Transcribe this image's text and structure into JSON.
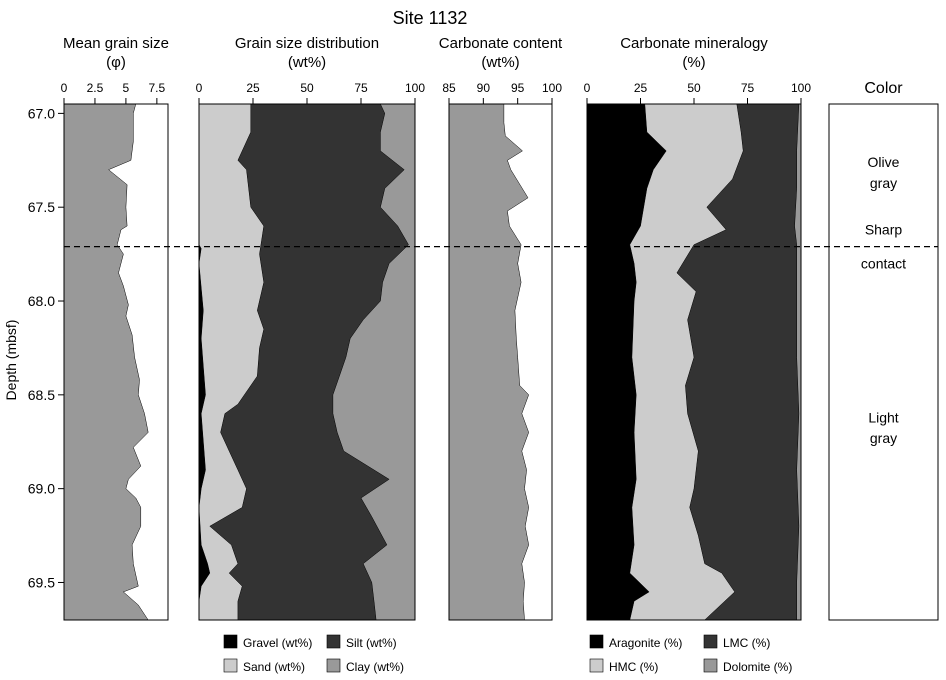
{
  "chart_data": {
    "type": "area",
    "title": "Site 1132",
    "y_axis": {
      "label": "Depth  (mbsf)",
      "range": [
        66.95,
        69.7
      ],
      "ticks": [
        "67.0",
        "67.5",
        "68.0",
        "68.5",
        "69.0",
        "69.5"
      ],
      "tick_values": [
        67.0,
        67.5,
        68.0,
        68.5,
        69.0,
        69.5
      ],
      "inverted": true
    },
    "contact": {
      "depth": 67.71,
      "label_top": "Sharp",
      "label_bottom": "contact"
    },
    "panels": [
      {
        "key": "grain_size",
        "title_line1": "Mean grain size",
        "title_line2": "(φ)",
        "x_range": [
          0,
          8.4
        ],
        "ticks": [
          "0",
          "2.5",
          "5",
          "7.5"
        ],
        "tick_values": [
          0,
          2.5,
          5,
          7.5
        ],
        "series": [
          {
            "name": "Mean grain size",
            "color": "#999999",
            "points": [
              [
                5.8,
                66.95
              ],
              [
                5.6,
                67.0
              ],
              [
                5.6,
                67.15
              ],
              [
                5.4,
                67.25
              ],
              [
                3.6,
                67.3
              ],
              [
                5.1,
                67.38
              ],
              [
                5.0,
                67.5
              ],
              [
                5.1,
                67.6
              ],
              [
                4.6,
                67.62
              ],
              [
                4.3,
                67.7
              ],
              [
                4.8,
                67.75
              ],
              [
                4.4,
                67.85
              ],
              [
                4.8,
                67.92
              ],
              [
                5.2,
                68.02
              ],
              [
                5.0,
                68.08
              ],
              [
                5.5,
                68.18
              ],
              [
                5.7,
                68.3
              ],
              [
                6.1,
                68.42
              ],
              [
                6.0,
                68.5
              ],
              [
                6.5,
                68.6
              ],
              [
                6.8,
                68.7
              ],
              [
                5.6,
                68.78
              ],
              [
                6.2,
                68.88
              ],
              [
                5.2,
                68.95
              ],
              [
                5.0,
                69.0
              ],
              [
                5.8,
                69.05
              ],
              [
                6.2,
                69.1
              ],
              [
                6.2,
                69.2
              ],
              [
                5.5,
                69.3
              ],
              [
                5.6,
                69.4
              ],
              [
                6.0,
                69.52
              ],
              [
                4.8,
                69.55
              ],
              [
                6.0,
                69.62
              ],
              [
                6.8,
                69.7
              ]
            ]
          }
        ]
      },
      {
        "key": "grain_dist",
        "title_line1": "Grain size distribution",
        "title_line2": "(wt%)",
        "x_range": [
          0,
          100
        ],
        "ticks": [
          "0",
          "25",
          "50",
          "75",
          "100"
        ],
        "tick_values": [
          0,
          25,
          50,
          75,
          100
        ],
        "series": [
          {
            "name": "Gravel (wt%)",
            "color": "#000000",
            "points": [
              [
                0,
                66.95
              ],
              [
                0,
                67.7
              ],
              [
                1,
                67.72
              ],
              [
                0,
                67.8
              ],
              [
                2,
                68.05
              ],
              [
                1,
                68.2
              ],
              [
                3,
                68.5
              ],
              [
                1,
                68.6
              ],
              [
                3,
                68.9
              ],
              [
                1,
                69.0
              ],
              [
                0,
                69.1
              ],
              [
                1,
                69.3
              ],
              [
                4,
                69.4
              ],
              [
                5,
                69.45
              ],
              [
                1,
                69.52
              ],
              [
                0,
                69.6
              ],
              [
                0,
                69.7
              ]
            ]
          },
          {
            "name": "Sand (wt%)",
            "color": "#cccccc",
            "points": [
              [
                24,
                66.95
              ],
              [
                24,
                67.1
              ],
              [
                18,
                67.25
              ],
              [
                22,
                67.3
              ],
              [
                24,
                67.5
              ],
              [
                30,
                67.6
              ],
              [
                28,
                67.75
              ],
              [
                30,
                67.9
              ],
              [
                27,
                68.05
              ],
              [
                30,
                68.15
              ],
              [
                28,
                68.25
              ],
              [
                27,
                68.4
              ],
              [
                18,
                68.55
              ],
              [
                12,
                68.6
              ],
              [
                10,
                68.7
              ],
              [
                14,
                68.8
              ],
              [
                18,
                68.9
              ],
              [
                22,
                69.0
              ],
              [
                20,
                69.1
              ],
              [
                5,
                69.2
              ],
              [
                15,
                69.3
              ],
              [
                18,
                69.4
              ],
              [
                14,
                69.45
              ],
              [
                20,
                69.52
              ],
              [
                18,
                69.6
              ],
              [
                18,
                69.7
              ]
            ]
          },
          {
            "name": "Silt (wt%)",
            "color": "#333333",
            "points": [
              [
                84,
                66.95
              ],
              [
                86,
                67.0
              ],
              [
                84,
                67.1
              ],
              [
                84,
                67.2
              ],
              [
                95,
                67.3
              ],
              [
                86,
                67.4
              ],
              [
                84,
                67.5
              ],
              [
                92,
                67.6
              ],
              [
                97,
                67.7
              ],
              [
                88,
                67.8
              ],
              [
                85,
                67.9
              ],
              [
                84,
                68.0
              ],
              [
                76,
                68.1
              ],
              [
                70,
                68.2
              ],
              [
                68,
                68.3
              ],
              [
                65,
                68.4
              ],
              [
                62,
                68.5
              ],
              [
                62,
                68.6
              ],
              [
                64,
                68.7
              ],
              [
                67,
                68.8
              ],
              [
                88,
                68.95
              ],
              [
                75,
                69.05
              ],
              [
                80,
                69.15
              ],
              [
                87,
                69.3
              ],
              [
                76,
                69.4
              ],
              [
                80,
                69.5
              ],
              [
                81,
                69.6
              ],
              [
                82,
                69.7
              ]
            ]
          },
          {
            "name": "Clay (wt%)",
            "color": "#999999",
            "points": [
              [
                100,
                66.95
              ],
              [
                100,
                69.7
              ]
            ]
          }
        ]
      },
      {
        "key": "carbonate",
        "title_line1": "Carbonate content",
        "title_line2": "(wt%)",
        "x_range": [
          85,
          100
        ],
        "ticks": [
          "85",
          "90",
          "95",
          "100"
        ],
        "tick_values": [
          85,
          90,
          95,
          100
        ],
        "series": [
          {
            "name": "Carbonate content",
            "color": "#999999",
            "points": [
              [
                93,
                66.95
              ],
              [
                93,
                67.05
              ],
              [
                93.2,
                67.12
              ],
              [
                95.7,
                67.2
              ],
              [
                93.5,
                67.25
              ],
              [
                94,
                67.3
              ],
              [
                96.5,
                67.45
              ],
              [
                93.5,
                67.52
              ],
              [
                93.8,
                67.6
              ],
              [
                95.5,
                67.7
              ],
              [
                95,
                67.8
              ],
              [
                95.5,
                67.9
              ],
              [
                94.6,
                68.05
              ],
              [
                94.8,
                68.2
              ],
              [
                95,
                68.3
              ],
              [
                95.3,
                68.45
              ],
              [
                96.6,
                68.5
              ],
              [
                95.6,
                68.6
              ],
              [
                96.6,
                68.7
              ],
              [
                95.6,
                68.8
              ],
              [
                96.3,
                68.9
              ],
              [
                96,
                69.0
              ],
              [
                96.6,
                69.1
              ],
              [
                96.1,
                69.2
              ],
              [
                96.6,
                69.3
              ],
              [
                95.6,
                69.4
              ],
              [
                96,
                69.5
              ],
              [
                95.8,
                69.6
              ],
              [
                96,
                69.7
              ]
            ]
          }
        ]
      },
      {
        "key": "mineralogy",
        "title_line1": "Carbonate mineralogy",
        "title_line2": "(%)",
        "x_range": [
          0,
          100
        ],
        "ticks": [
          "0",
          "25",
          "50",
          "75",
          "100"
        ],
        "tick_values": [
          0,
          25,
          50,
          75,
          100
        ],
        "series": [
          {
            "name": "Aragonite (%)",
            "color": "#000000",
            "points": [
              [
                27,
                66.95
              ],
              [
                28,
                67.1
              ],
              [
                37,
                67.2
              ],
              [
                31,
                67.3
              ],
              [
                28,
                67.4
              ],
              [
                25,
                67.6
              ],
              [
                20,
                67.7
              ],
              [
                22,
                67.8
              ],
              [
                23,
                67.9
              ],
              [
                22,
                68.0
              ],
              [
                21,
                68.3
              ],
              [
                23,
                68.5
              ],
              [
                22,
                68.7
              ],
              [
                23,
                68.95
              ],
              [
                21,
                69.1
              ],
              [
                22,
                69.3
              ],
              [
                20,
                69.45
              ],
              [
                29,
                69.55
              ],
              [
                22,
                69.6
              ],
              [
                20,
                69.7
              ]
            ]
          },
          {
            "name": "HMC (%)",
            "color": "#cccccc",
            "points": [
              [
                70,
                66.95
              ],
              [
                72,
                67.1
              ],
              [
                73,
                67.2
              ],
              [
                68,
                67.35
              ],
              [
                56,
                67.5
              ],
              [
                65,
                67.62
              ],
              [
                50,
                67.7
              ],
              [
                42,
                67.85
              ],
              [
                51,
                67.95
              ],
              [
                47,
                68.1
              ],
              [
                50,
                68.3
              ],
              [
                46,
                68.45
              ],
              [
                47,
                68.6
              ],
              [
                52,
                68.8
              ],
              [
                50,
                69.0
              ],
              [
                48,
                69.1
              ],
              [
                52,
                69.25
              ],
              [
                55,
                69.4
              ],
              [
                63,
                69.45
              ],
              [
                69,
                69.55
              ],
              [
                55,
                69.7
              ]
            ]
          },
          {
            "name": "LMC (%)",
            "color": "#333333",
            "points": [
              [
                99,
                66.95
              ],
              [
                98,
                67.2
              ],
              [
                98,
                67.4
              ],
              [
                97,
                67.6
              ],
              [
                98,
                67.7
              ],
              [
                98,
                68.0
              ],
              [
                98,
                68.3
              ],
              [
                99,
                68.6
              ],
              [
                98,
                68.9
              ],
              [
                99,
                69.2
              ],
              [
                98,
                69.5
              ],
              [
                98,
                69.7
              ]
            ]
          },
          {
            "name": "Dolomite (%)",
            "color": "#999999",
            "points": [
              [
                100,
                66.95
              ],
              [
                100,
                69.7
              ]
            ]
          }
        ]
      }
    ],
    "color_column": {
      "title": "Color",
      "labels": [
        {
          "text": "Olive",
          "depth": 67.26
        },
        {
          "text": "gray",
          "depth": 67.37
        },
        {
          "text": "Light",
          "depth": 68.62
        },
        {
          "text": "gray",
          "depth": 68.73
        }
      ]
    },
    "legends": [
      {
        "panel": "grain_dist",
        "items": [
          "Gravel (wt%)",
          "Silt (wt%)",
          "Sand (wt%)",
          "Clay (wt%)"
        ]
      },
      {
        "panel": "mineralogy",
        "items": [
          "Aragonite (%)",
          "LMC (%)",
          "HMC (%)",
          "Dolomite (%)"
        ]
      }
    ],
    "grid": false
  }
}
